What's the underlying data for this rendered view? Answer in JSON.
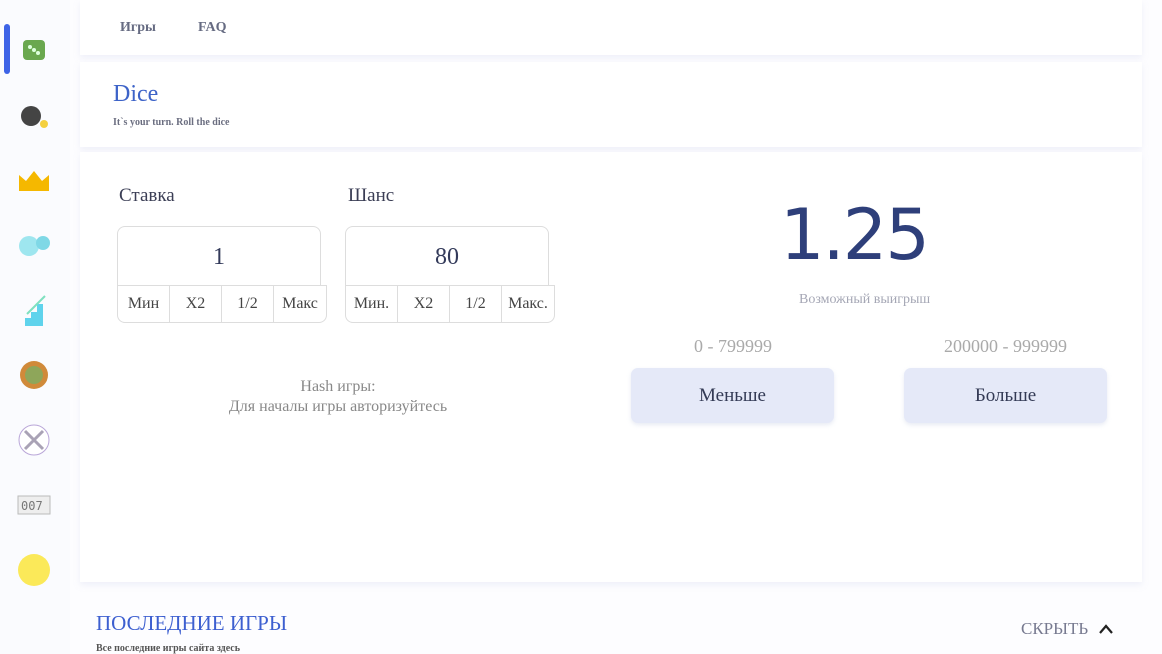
{
  "nav": {
    "games": "Игры",
    "faq": "FAQ"
  },
  "sidebar": {
    "items": [
      "dice-icon",
      "bomb-icon",
      "crown-icon",
      "bubbles-icon",
      "stairs-icon",
      "roulette-icon",
      "swords-icon",
      "slot-counter-icon",
      "coin-icon"
    ],
    "active": 0,
    "accent": "#3d63e6"
  },
  "header": {
    "title": "Dice",
    "subtitle": "It`s your turn. Roll the dice"
  },
  "bet": {
    "label": "Ставка",
    "value": "1",
    "buttons": [
      "Мин",
      "X2",
      "1/2",
      "Макс"
    ]
  },
  "chance": {
    "label": "Шанс",
    "value": "80",
    "buttons": [
      "Мин.",
      "X2",
      "1/2",
      "Макс."
    ]
  },
  "hash": {
    "label": "Hash игры:",
    "text": "Для началы игры авторизуйтесь"
  },
  "result": {
    "multiplier": "1.25",
    "caption": "Возможный выигрыш"
  },
  "less": {
    "range": "0 - 799999",
    "label": "Меньше"
  },
  "more": {
    "range": "200000 - 999999",
    "label": "Больше"
  },
  "recent": {
    "title": "ПОСЛЕДНИЕ ИГРЫ",
    "subtitle": "Все последние игры сайта здесь",
    "hide": "СКРЫТЬ"
  }
}
